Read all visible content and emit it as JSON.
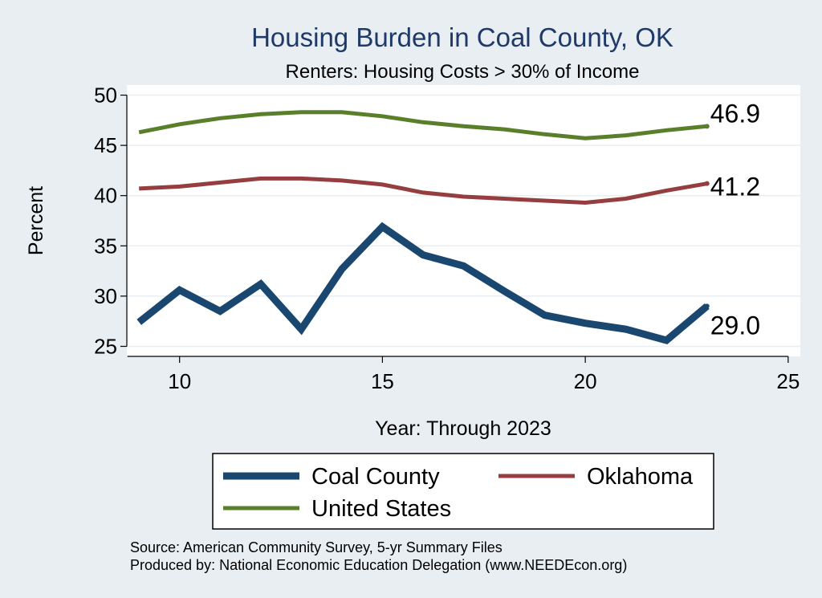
{
  "chart_data": {
    "type": "line",
    "title": "Housing Burden in Coal County, OK",
    "subtitle": "Renters: Housing Costs > 30% of Income",
    "xlabel": "Year: Through 2023",
    "ylabel": "Percent",
    "xlim": [
      8.7,
      25.3
    ],
    "ylim": [
      24,
      51
    ],
    "xticks": [
      10,
      15,
      20,
      25
    ],
    "yticks": [
      25,
      30,
      35,
      40,
      45,
      50
    ],
    "grid": true,
    "series": [
      {
        "name": "United States",
        "color": "#5a7f2b",
        "end_label": "46.9",
        "x": [
          9,
          10,
          11,
          12,
          13,
          14,
          15,
          16,
          17,
          18,
          19,
          20,
          21,
          22,
          23
        ],
        "values": [
          46.3,
          47.1,
          47.7,
          48.1,
          48.3,
          48.3,
          47.9,
          47.3,
          46.9,
          46.6,
          46.1,
          45.7,
          46.0,
          46.5,
          46.9
        ]
      },
      {
        "name": "Oklahoma",
        "color": "#963d3f",
        "end_label": "41.2",
        "x": [
          9,
          10,
          11,
          12,
          13,
          14,
          15,
          16,
          17,
          18,
          19,
          20,
          21,
          22,
          23
        ],
        "values": [
          40.7,
          40.9,
          41.3,
          41.7,
          41.7,
          41.5,
          41.1,
          40.3,
          39.9,
          39.7,
          39.5,
          39.3,
          39.7,
          40.5,
          41.2
        ]
      },
      {
        "name": "Coal County",
        "color": "#1a476f",
        "end_label": "29.0",
        "x": [
          9,
          10,
          11,
          12,
          13,
          14,
          15,
          16,
          17,
          18,
          19,
          20,
          21,
          22,
          23
        ],
        "values": [
          27.4,
          30.6,
          28.5,
          31.2,
          26.7,
          32.7,
          36.9,
          34.1,
          33.0,
          30.5,
          28.1,
          27.3,
          26.7,
          25.6,
          29.0
        ]
      }
    ],
    "legend": {
      "placement": "bottom",
      "items": [
        {
          "name": "Coal County",
          "color": "#1a476f"
        },
        {
          "name": "Oklahoma",
          "color": "#963d3f"
        },
        {
          "name": "United States",
          "color": "#5a7f2b"
        }
      ]
    },
    "notes": [
      "Source: American Community Survey, 5-yr Summary Files",
      "Produced by: National Economic Education Delegation (www.NEEDEcon.org)"
    ]
  }
}
